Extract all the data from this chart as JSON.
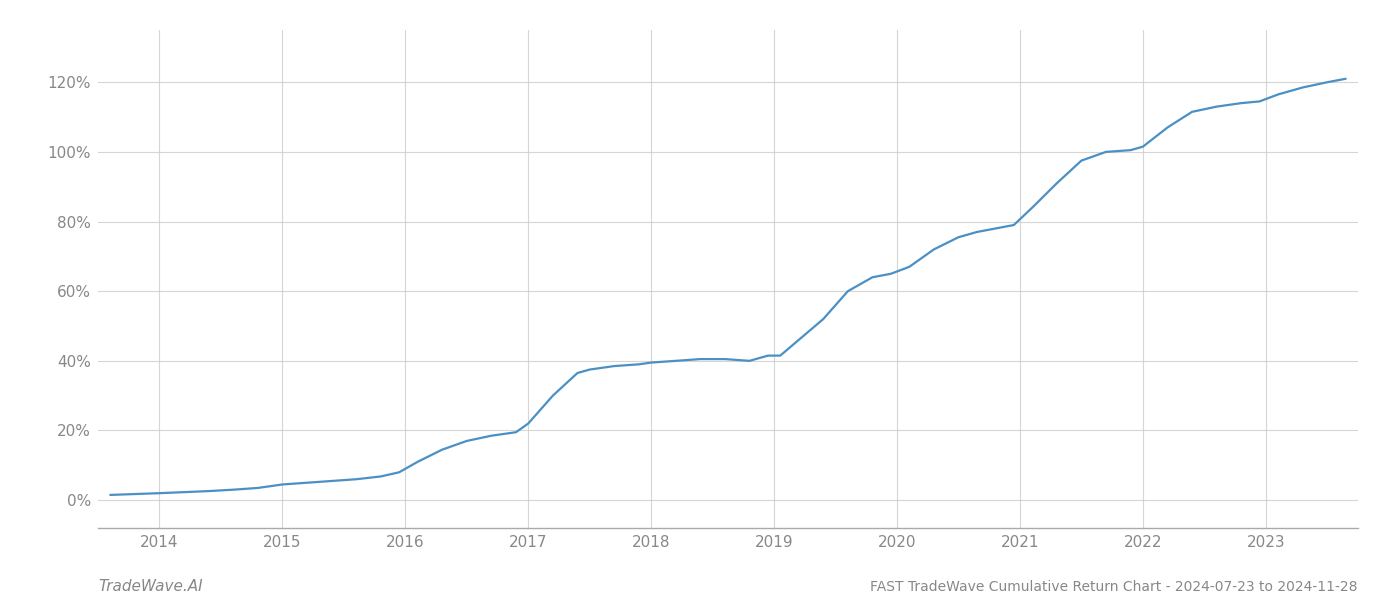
{
  "title": "FAST TradeWave Cumulative Return Chart - 2024-07-23 to 2024-11-28",
  "watermark": "TradeWave.AI",
  "line_color": "#4a90c4",
  "line_width": 1.6,
  "background_color": "#ffffff",
  "grid_color": "#cccccc",
  "x_years": [
    2014,
    2015,
    2016,
    2017,
    2018,
    2019,
    2020,
    2021,
    2022,
    2023
  ],
  "x_data": [
    2013.6,
    2014.0,
    2014.2,
    2014.4,
    2014.6,
    2014.8,
    2015.0,
    2015.2,
    2015.4,
    2015.6,
    2015.8,
    2015.95,
    2016.1,
    2016.3,
    2016.5,
    2016.7,
    2016.9,
    2017.0,
    2017.2,
    2017.4,
    2017.5,
    2017.7,
    2017.9,
    2018.0,
    2018.2,
    2018.4,
    2018.6,
    2018.8,
    2018.95,
    2019.05,
    2019.2,
    2019.4,
    2019.6,
    2019.8,
    2019.95,
    2020.1,
    2020.3,
    2020.5,
    2020.65,
    2020.8,
    2020.95,
    2021.1,
    2021.3,
    2021.5,
    2021.7,
    2021.9,
    2022.0,
    2022.2,
    2022.4,
    2022.6,
    2022.8,
    2022.95,
    2023.1,
    2023.3,
    2023.5,
    2023.65
  ],
  "y_data": [
    1.5,
    2.0,
    2.3,
    2.6,
    3.0,
    3.5,
    4.5,
    5.0,
    5.5,
    6.0,
    6.8,
    8.0,
    11.0,
    14.5,
    17.0,
    18.5,
    19.5,
    22.0,
    30.0,
    36.5,
    37.5,
    38.5,
    39.0,
    39.5,
    40.0,
    40.5,
    40.5,
    40.0,
    41.5,
    41.5,
    46.0,
    52.0,
    60.0,
    64.0,
    65.0,
    67.0,
    72.0,
    75.5,
    77.0,
    78.0,
    79.0,
    84.0,
    91.0,
    97.5,
    100.0,
    100.5,
    101.5,
    107.0,
    111.5,
    113.0,
    114.0,
    114.5,
    116.5,
    118.5,
    120.0,
    121.0
  ],
  "xlim": [
    2013.5,
    2023.75
  ],
  "ylim": [
    -8,
    135
  ],
  "yticks": [
    0,
    20,
    40,
    60,
    80,
    100,
    120
  ],
  "title_fontsize": 10,
  "watermark_fontsize": 11,
  "tick_fontsize": 11,
  "tick_color": "#888888",
  "label_color": "#666666"
}
